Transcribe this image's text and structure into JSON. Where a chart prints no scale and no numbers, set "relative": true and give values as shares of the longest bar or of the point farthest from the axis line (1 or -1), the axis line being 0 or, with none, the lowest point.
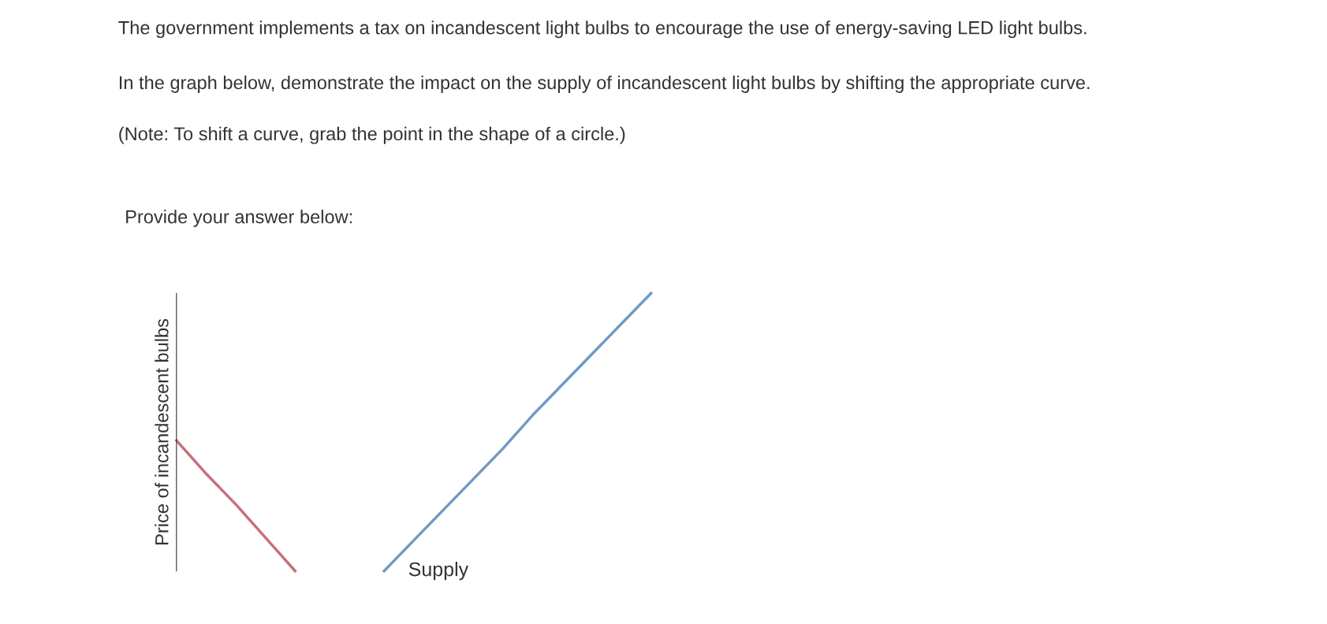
{
  "chart_data": {
    "type": "line",
    "title": "The government implements a tax on incandescent light bulbs to encourage the use of energy-saving LED light bulbs.",
    "subtitle": "In the graph below, demonstrate the impact on the supply of incandescent light bulbs by shifting the appropriate curve.",
    "annotations": [
      "(Note: To shift a curve, grab the point in the shape of a circle.)",
      "Provide your answer below:"
    ],
    "ylabel": "Price of incandescent bulbs",
    "relative": true,
    "categories": [
      null,
      null,
      null,
      null,
      null,
      null,
      null,
      null,
      null,
      null,
      null,
      null,
      null,
      null,
      null,
      null,
      null,
      null,
      null,
      null,
      null
    ],
    "series": [
      {
        "color": "#c8707a",
        "values": [
          0.47,
          0.35,
          0.24,
          0.12,
          0,
          null,
          null,
          null,
          null,
          null,
          null,
          null,
          null,
          null,
          null,
          null,
          null,
          null,
          null,
          null,
          null
        ]
      },
      {
        "name": "Supply",
        "color": "#6f9ac6",
        "values": [
          null,
          null,
          null,
          null,
          null,
          null,
          null,
          0,
          0.11,
          0.22,
          0.33,
          0.44,
          0.56,
          0.67,
          0.78,
          0.89,
          1,
          null,
          null,
          null,
          null
        ]
      }
    ]
  }
}
